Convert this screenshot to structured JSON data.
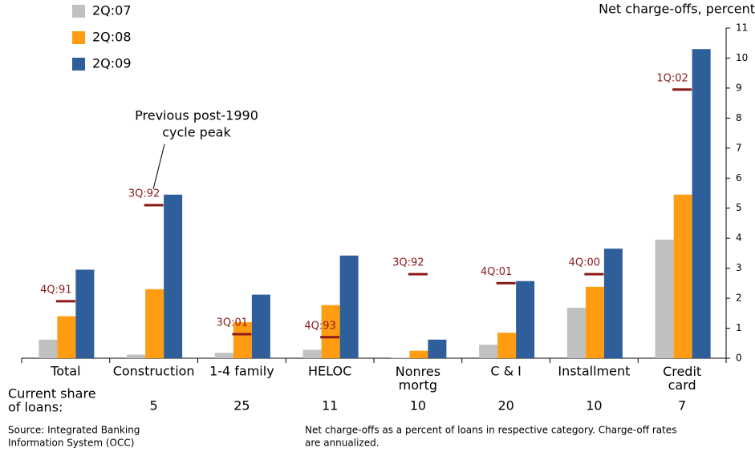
{
  "chart_data": {
    "type": "bar",
    "y_axis_label": "Net charge-offs, percent",
    "categories": [
      "Total",
      "Construction",
      "1-4 family",
      "HELOC",
      "Nonres\nmortg",
      "C & I",
      "Installment",
      "Credit\ncard"
    ],
    "series": [
      {
        "name": "2Q:07",
        "color": "#c0c0c0",
        "values": [
          0.62,
          0.12,
          0.18,
          0.28,
          0.02,
          0.45,
          1.68,
          3.95
        ]
      },
      {
        "name": "2Q:08",
        "color": "#ff9c12",
        "values": [
          1.4,
          2.3,
          1.2,
          1.77,
          0.25,
          0.85,
          2.38,
          5.45
        ]
      },
      {
        "name": "2Q:09",
        "color": "#2e5f9a",
        "values": [
          2.95,
          5.45,
          2.12,
          3.42,
          0.62,
          2.57,
          3.65,
          10.3
        ]
      }
    ],
    "peaks": {
      "color": "#8b1a1a",
      "labels": [
        "4Q:91",
        "3Q:92",
        "3Q:01",
        "4Q:93",
        "3Q:92",
        "4Q:01",
        "4Q:00",
        "1Q:02"
      ],
      "values": [
        1.9,
        5.1,
        0.8,
        0.7,
        2.8,
        2.5,
        2.8,
        8.95
      ]
    },
    "annotation": [
      "Previous post-1990",
      "cycle peak"
    ],
    "share_label": [
      "Current share",
      "of loans:"
    ],
    "shares": [
      null,
      5,
      25,
      11,
      10,
      20,
      10,
      7
    ],
    "ylim": [
      0,
      11
    ],
    "yticks": [
      0,
      1,
      2,
      3,
      4,
      5,
      6,
      7,
      8,
      9,
      10,
      11
    ],
    "source": [
      "Source: Integrated Banking",
      "Information System (OCC)"
    ],
    "note": [
      "Net charge-offs as a percent of loans in respective category. Charge-off rates",
      "are annualized."
    ]
  }
}
